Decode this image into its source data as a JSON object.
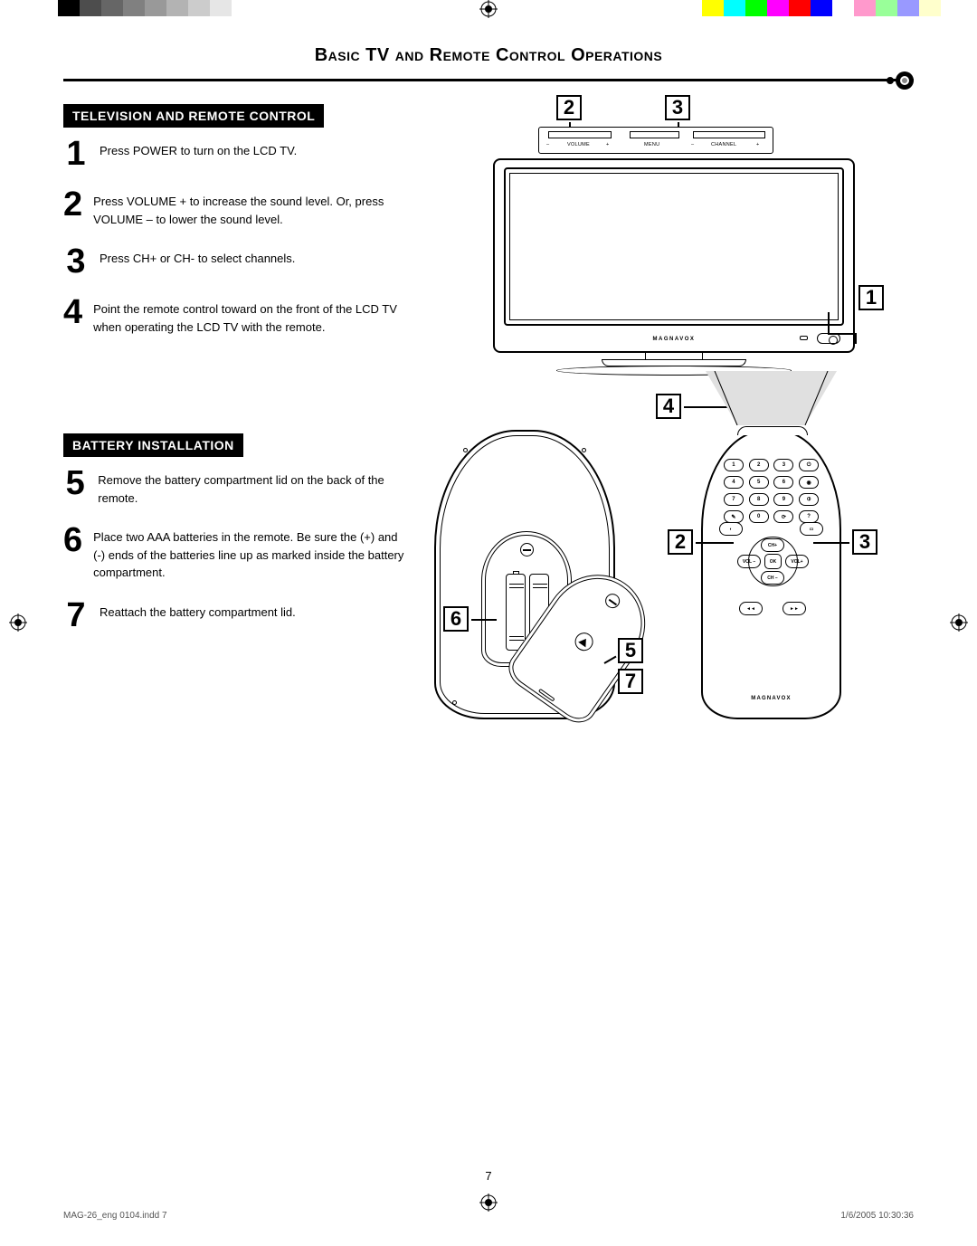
{
  "color_bars_left": [
    "#ffffff",
    "#000000",
    "#4d4d4d",
    "#666666",
    "#808080",
    "#999999",
    "#b3b3b3",
    "#cccccc",
    "#e6e6e6",
    "#ffffff"
  ],
  "color_bars_right": [
    "#ffffff",
    "#ffff00",
    "#00ffff",
    "#00ff00",
    "#ff00ff",
    "#ff0000",
    "#0000ff",
    "#ffffff",
    "#ff99cc",
    "#99ff99",
    "#9999ff",
    "#ffffcc"
  ],
  "title": "Basic TV and Remote Control Operations",
  "section1_header": "TELEVISION AND REMOTE CONTROL",
  "section2_header": "BATTERY INSTALLATION",
  "steps": {
    "1": "Press POWER to turn on the LCD TV.",
    "2": "Press VOLUME + to increase the sound level. Or, press VOLUME –  to lower the sound level.",
    "3": "Press CH+ or CH- to select channels.",
    "4": "Point the remote control toward  on the front of the LCD TV when operating the LCD TV with the remote.",
    "5": "Remove the battery compartment lid on the back of the remote.",
    "6": "Place two AAA batteries in the remote. Be sure the (+) and (-) ends  of the batteries line up as marked inside the battery compartment.",
    "7": "Reattach the battery compartment lid."
  },
  "tv": {
    "top_labels": {
      "minus1": "–",
      "vol": "VOLUME",
      "plus1": "+",
      "menu": "MENU",
      "minus2": "–",
      "ch": "CHANNEL",
      "plus2": "+"
    },
    "brand": "MAGNAVOX"
  },
  "remote_front": {
    "keys_row1": [
      "1",
      "2",
      "3",
      "⏻"
    ],
    "keys_row2": [
      "4",
      "5",
      "6",
      "◉"
    ],
    "keys_row3": [
      "7",
      "8",
      "9",
      "⦶"
    ],
    "keys_row4": [
      "✎",
      "0",
      "⟳",
      "?"
    ],
    "dpad": {
      "up": "CH+",
      "down": "CH –",
      "left": "VOL –",
      "right": "VOL+",
      "center": "OK"
    },
    "extra_left": "◐",
    "extra_right": "▭",
    "bottom_left": "◄◄",
    "bottom_right": "►►",
    "brand": "MAGNAVOX"
  },
  "callouts_tv": {
    "c2": "2",
    "c3": "3",
    "c1": "1"
  },
  "callouts_remote": {
    "c4": "4",
    "c2": "2",
    "c3": "3",
    "c5": "5",
    "c6": "6",
    "c7": "7"
  },
  "page_number": "7",
  "footer_left": "MAG-26_eng 0104.indd   7",
  "footer_right": "1/6/2005   10:30:36"
}
